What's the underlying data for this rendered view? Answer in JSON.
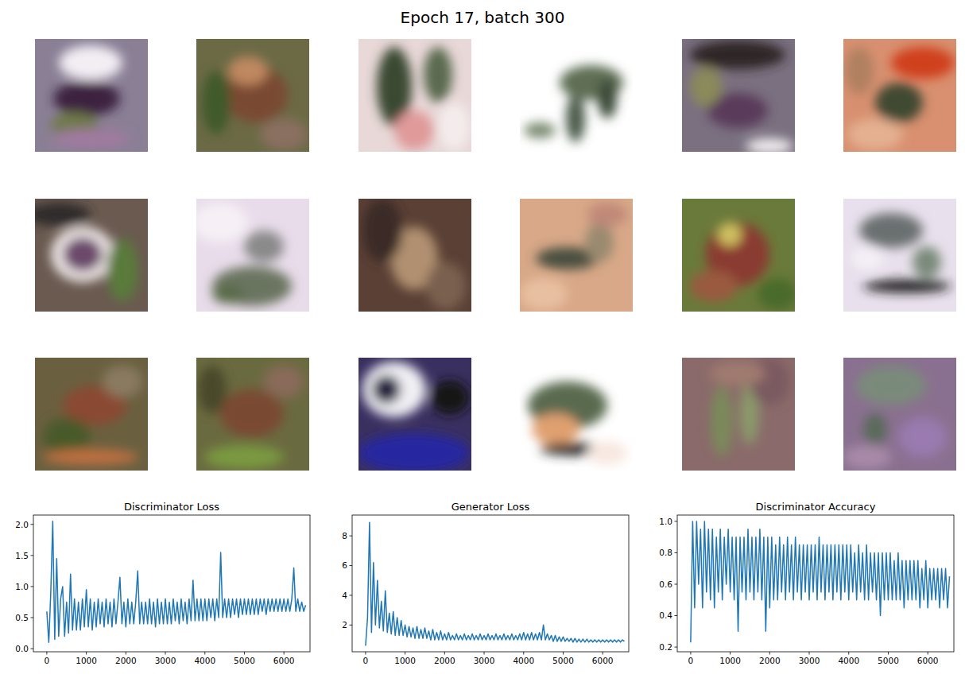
{
  "title": "Epoch 17, batch 300",
  "chart_data": [
    {
      "type": "line",
      "title": "Discriminator Loss",
      "color": "#1f77b4",
      "x": [
        0,
        50,
        100,
        150,
        200,
        250,
        300,
        350,
        400,
        450,
        500,
        550,
        600,
        650,
        700,
        750,
        800,
        850,
        900,
        950,
        1000,
        1050,
        1100,
        1150,
        1200,
        1250,
        1300,
        1350,
        1400,
        1450,
        1500,
        1550,
        1600,
        1650,
        1700,
        1750,
        1800,
        1850,
        1900,
        1950,
        2000,
        2050,
        2100,
        2150,
        2200,
        2250,
        2300,
        2350,
        2400,
        2450,
        2500,
        2550,
        2600,
        2650,
        2700,
        2750,
        2800,
        2850,
        2900,
        2950,
        3000,
        3050,
        3100,
        3150,
        3200,
        3250,
        3300,
        3350,
        3400,
        3450,
        3500,
        3550,
        3600,
        3650,
        3700,
        3750,
        3800,
        3850,
        3900,
        3950,
        4000,
        4050,
        4100,
        4150,
        4200,
        4250,
        4300,
        4350,
        4400,
        4450,
        4500,
        4550,
        4600,
        4650,
        4700,
        4750,
        4800,
        4850,
        4900,
        4950,
        5000,
        5050,
        5100,
        5150,
        5200,
        5250,
        5300,
        5350,
        5400,
        5450,
        5500,
        5550,
        5600,
        5650,
        5700,
        5750,
        5800,
        5850,
        5900,
        5950,
        6000,
        6050,
        6100,
        6150,
        6200,
        6250,
        6300,
        6350,
        6400,
        6450,
        6500,
        6550
      ],
      "values": [
        0.6,
        0.1,
        0.9,
        2.05,
        0.15,
        1.45,
        0.2,
        0.8,
        1.0,
        0.2,
        0.75,
        0.25,
        1.2,
        0.3,
        0.8,
        0.3,
        0.75,
        0.3,
        0.8,
        0.35,
        0.95,
        0.35,
        0.8,
        0.3,
        0.75,
        0.35,
        0.8,
        0.4,
        0.75,
        0.35,
        0.8,
        0.4,
        0.75,
        0.35,
        0.8,
        0.4,
        0.75,
        1.15,
        0.4,
        0.75,
        0.35,
        0.8,
        0.4,
        0.75,
        0.4,
        0.75,
        1.25,
        0.4,
        0.75,
        0.4,
        0.75,
        0.4,
        0.8,
        0.4,
        0.75,
        0.35,
        0.8,
        0.4,
        0.75,
        0.4,
        0.8,
        0.4,
        0.75,
        0.4,
        0.8,
        0.45,
        0.75,
        0.4,
        0.8,
        0.45,
        0.75,
        0.4,
        0.8,
        0.45,
        1.1,
        0.45,
        0.8,
        0.45,
        0.8,
        0.45,
        0.8,
        0.45,
        0.8,
        0.5,
        0.8,
        0.45,
        0.8,
        0.5,
        1.55,
        0.5,
        0.8,
        0.5,
        0.8,
        0.5,
        0.8,
        0.55,
        0.8,
        0.5,
        0.8,
        0.55,
        0.8,
        0.55,
        0.8,
        0.55,
        0.8,
        0.55,
        0.8,
        0.55,
        0.8,
        0.6,
        0.8,
        0.55,
        0.8,
        0.6,
        0.8,
        0.6,
        0.8,
        0.6,
        0.8,
        0.6,
        0.8,
        0.6,
        0.8,
        0.6,
        0.8,
        1.3,
        0.6,
        0.8,
        0.6,
        0.75,
        0.6,
        0.7
      ],
      "xlim": [
        -340,
        6660
      ],
      "ylim": [
        -0.05,
        2.15
      ],
      "xticks": [
        0,
        1000,
        2000,
        3000,
        4000,
        5000,
        6000
      ],
      "yticks": [
        {
          "value": 0,
          "label": "0.0"
        },
        {
          "value": 0.5,
          "label": "0.5"
        },
        {
          "value": 1,
          "label": "1.0"
        },
        {
          "value": 1.5,
          "label": "1.5"
        },
        {
          "value": 2,
          "label": "2.0"
        }
      ]
    },
    {
      "type": "line",
      "title": "Generator Loss",
      "color": "#1f77b4",
      "x": [
        0,
        50,
        100,
        150,
        200,
        250,
        300,
        350,
        400,
        450,
        500,
        550,
        600,
        650,
        700,
        750,
        800,
        850,
        900,
        950,
        1000,
        1050,
        1100,
        1150,
        1200,
        1250,
        1300,
        1350,
        1400,
        1450,
        1500,
        1550,
        1600,
        1650,
        1700,
        1750,
        1800,
        1850,
        1900,
        1950,
        2000,
        2050,
        2100,
        2150,
        2200,
        2250,
        2300,
        2350,
        2400,
        2450,
        2500,
        2550,
        2600,
        2650,
        2700,
        2750,
        2800,
        2850,
        2900,
        2950,
        3000,
        3050,
        3100,
        3150,
        3200,
        3250,
        3300,
        3350,
        3400,
        3450,
        3500,
        3550,
        3600,
        3650,
        3700,
        3750,
        3800,
        3850,
        3900,
        3950,
        4000,
        4050,
        4100,
        4150,
        4200,
        4250,
        4300,
        4350,
        4400,
        4450,
        4500,
        4550,
        4600,
        4650,
        4700,
        4750,
        4800,
        4850,
        4900,
        4950,
        5000,
        5050,
        5100,
        5150,
        5200,
        5250,
        5300,
        5350,
        5400,
        5450,
        5500,
        5550,
        5600,
        5650,
        5700,
        5750,
        5800,
        5850,
        5900,
        5950,
        6000,
        6050,
        6100,
        6150,
        6200,
        6250,
        6300,
        6350,
        6400,
        6450,
        6500,
        6550
      ],
      "values": [
        0.6,
        2.5,
        8.9,
        1.5,
        6.2,
        2.0,
        5.0,
        1.8,
        3.6,
        1.6,
        4.3,
        1.5,
        2.8,
        1.4,
        2.9,
        1.3,
        2.5,
        1.3,
        2.3,
        1.3,
        2.0,
        1.2,
        1.9,
        1.2,
        1.8,
        1.1,
        1.9,
        1.1,
        1.7,
        1.1,
        1.8,
        1.1,
        1.6,
        1.0,
        1.7,
        1.0,
        1.5,
        1.0,
        1.6,
        1.0,
        1.4,
        1.0,
        1.5,
        1.0,
        1.3,
        1.0,
        1.4,
        1.0,
        1.3,
        1.0,
        1.4,
        1.0,
        1.3,
        1.0,
        1.4,
        1.0,
        1.3,
        1.0,
        1.4,
        1.0,
        1.3,
        1.0,
        1.4,
        1.0,
        1.3,
        1.0,
        1.4,
        1.0,
        1.3,
        1.0,
        1.4,
        1.0,
        1.3,
        1.0,
        1.4,
        1.0,
        1.3,
        1.0,
        1.4,
        1.0,
        1.5,
        1.0,
        1.4,
        1.0,
        1.5,
        1.0,
        1.4,
        1.0,
        1.5,
        1.0,
        2.0,
        1.0,
        1.4,
        1.0,
        1.3,
        0.9,
        1.3,
        0.9,
        1.2,
        0.9,
        1.2,
        0.9,
        1.1,
        0.9,
        1.1,
        0.85,
        1.1,
        0.85,
        1.05,
        0.85,
        1.05,
        0.85,
        1.05,
        0.85,
        1.0,
        0.85,
        1.0,
        0.85,
        1.0,
        0.85,
        1.0,
        0.85,
        1.0,
        0.85,
        1.0,
        0.85,
        1.0,
        0.85,
        1.0,
        0.85,
        1.0,
        0.9
      ],
      "xlim": [
        -340,
        6660
      ],
      "ylim": [
        0.2,
        9.4
      ],
      "xticks": [
        0,
        1000,
        2000,
        3000,
        4000,
        5000,
        6000
      ],
      "yticks": [
        2,
        4,
        6,
        8
      ]
    },
    {
      "type": "line",
      "title": "Discriminator Accuracy",
      "color": "#1f77b4",
      "x": [
        0,
        50,
        100,
        150,
        200,
        250,
        300,
        350,
        400,
        450,
        500,
        550,
        600,
        650,
        700,
        750,
        800,
        850,
        900,
        950,
        1000,
        1050,
        1100,
        1150,
        1200,
        1250,
        1300,
        1350,
        1400,
        1450,
        1500,
        1550,
        1600,
        1650,
        1700,
        1750,
        1800,
        1850,
        1900,
        1950,
        2000,
        2050,
        2100,
        2150,
        2200,
        2250,
        2300,
        2350,
        2400,
        2450,
        2500,
        2550,
        2600,
        2650,
        2700,
        2750,
        2800,
        2850,
        2900,
        2950,
        3000,
        3050,
        3100,
        3150,
        3200,
        3250,
        3300,
        3350,
        3400,
        3450,
        3500,
        3550,
        3600,
        3650,
        3700,
        3750,
        3800,
        3850,
        3900,
        3950,
        4000,
        4050,
        4100,
        4150,
        4200,
        4250,
        4300,
        4350,
        4400,
        4450,
        4500,
        4550,
        4600,
        4650,
        4700,
        4750,
        4800,
        4850,
        4900,
        4950,
        5000,
        5050,
        5100,
        5150,
        5200,
        5250,
        5300,
        5350,
        5400,
        5450,
        5500,
        5550,
        5600,
        5650,
        5700,
        5750,
        5800,
        5850,
        5900,
        5950,
        6000,
        6050,
        6100,
        6150,
        6200,
        6250,
        6300,
        6350,
        6400,
        6450,
        6500,
        6550
      ],
      "values": [
        0.23,
        1.0,
        0.45,
        1.0,
        0.6,
        0.95,
        0.45,
        1.0,
        0.55,
        0.95,
        0.5,
        0.95,
        0.45,
        0.9,
        0.55,
        0.95,
        0.5,
        0.9,
        0.6,
        0.95,
        0.55,
        0.9,
        0.5,
        0.9,
        0.3,
        0.9,
        0.55,
        0.9,
        0.5,
        0.95,
        0.55,
        0.9,
        0.5,
        0.9,
        0.55,
        0.95,
        0.5,
        0.9,
        0.3,
        0.9,
        0.45,
        0.9,
        0.5,
        0.85,
        0.5,
        0.9,
        0.55,
        0.85,
        0.5,
        0.9,
        0.55,
        0.85,
        0.5,
        0.9,
        0.55,
        0.85,
        0.5,
        0.85,
        0.55,
        0.85,
        0.5,
        0.85,
        0.55,
        0.85,
        0.5,
        0.9,
        0.55,
        0.85,
        0.5,
        0.85,
        0.55,
        0.85,
        0.5,
        0.85,
        0.55,
        0.85,
        0.5,
        0.85,
        0.55,
        0.85,
        0.5,
        0.85,
        0.55,
        0.8,
        0.5,
        0.85,
        0.55,
        0.8,
        0.5,
        0.85,
        0.5,
        0.8,
        0.55,
        0.8,
        0.5,
        0.8,
        0.4,
        0.8,
        0.5,
        0.8,
        0.5,
        0.8,
        0.5,
        0.75,
        0.5,
        0.8,
        0.5,
        0.75,
        0.45,
        0.75,
        0.5,
        0.75,
        0.5,
        0.75,
        0.5,
        0.75,
        0.45,
        0.7,
        0.5,
        0.75,
        0.45,
        0.7,
        0.5,
        0.7,
        0.5,
        0.7,
        0.45,
        0.7,
        0.5,
        0.7,
        0.45,
        0.65
      ],
      "xlim": [
        -340,
        6660
      ],
      "ylim": [
        0.17,
        1.04
      ],
      "xticks": [
        0,
        1000,
        2000,
        3000,
        4000,
        5000,
        6000
      ],
      "yticks": [
        0.2,
        0.4,
        0.6,
        0.8,
        {
          "value": 1,
          "label": "1.0"
        }
      ]
    }
  ]
}
